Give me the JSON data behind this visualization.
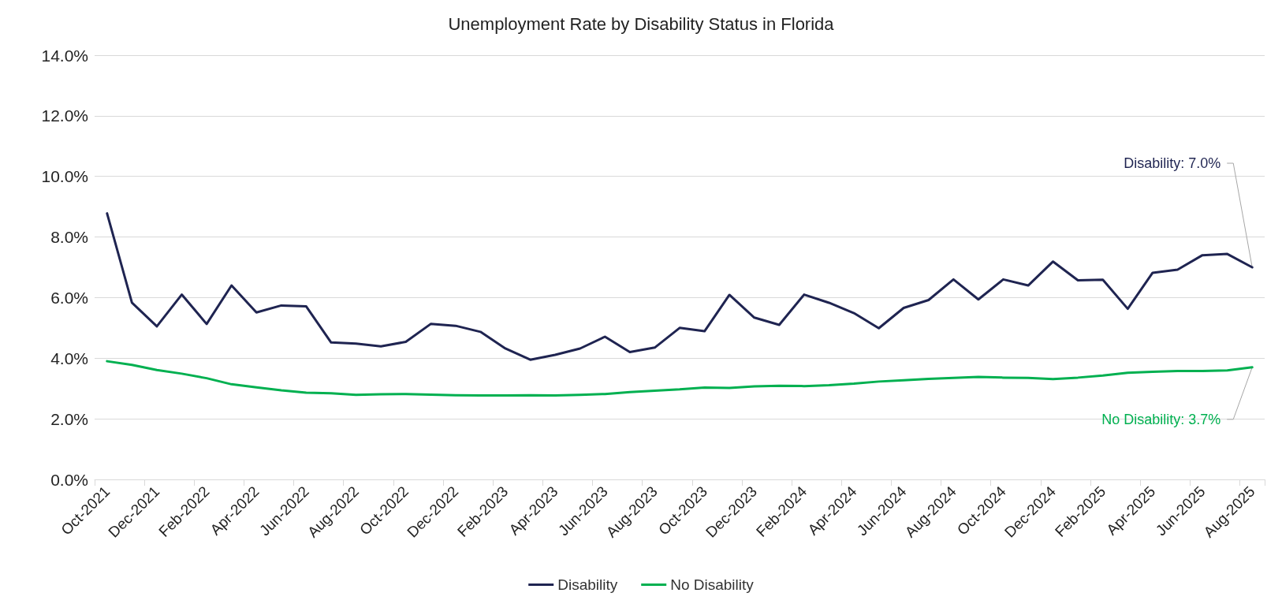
{
  "chart_data": {
    "type": "line",
    "title": "Unemployment Rate by Disability Status in Florida",
    "categories": [
      "Oct-2021",
      null,
      "Dec-2021",
      null,
      "Feb-2022",
      null,
      "Apr-2022",
      null,
      "Jun-2022",
      null,
      "Aug-2022",
      null,
      "Oct-2022",
      null,
      "Dec-2022",
      null,
      "Feb-2023",
      null,
      "Apr-2023",
      null,
      "Jun-2023",
      null,
      "Aug-2023",
      null,
      "Oct-2023",
      null,
      "Dec-2023",
      null,
      "Feb-2024",
      null,
      "Apr-2024",
      null,
      "Jun-2024",
      null,
      "Aug-2024",
      null,
      "Oct-2024",
      null,
      "Dec-2024",
      null,
      "Feb-2025",
      null,
      "Apr-2025",
      null,
      "Jun-2025",
      null,
      "Aug-2025"
    ],
    "series": [
      {
        "name": "Disability",
        "color": "#1f2451",
        "values": [
          8.78,
          5.83,
          5.05,
          6.1,
          5.13,
          6.4,
          5.51,
          5.74,
          5.71,
          4.52,
          4.48,
          4.39,
          4.54,
          5.13,
          5.07,
          4.87,
          4.32,
          3.95,
          4.11,
          4.32,
          4.71,
          4.2,
          4.35,
          5.0,
          4.89,
          6.09,
          5.34,
          5.1,
          6.1,
          5.83,
          5.49,
          4.99,
          5.66,
          5.92,
          6.6,
          5.94,
          6.6,
          6.4,
          7.19,
          6.57,
          6.59,
          5.63,
          6.82,
          6.92,
          7.4,
          7.44,
          7.0
        ]
      },
      {
        "name": "No Disability",
        "color": "#00b050",
        "values": [
          3.9,
          3.78,
          3.61,
          3.49,
          3.34,
          3.14,
          3.04,
          2.94,
          2.86,
          2.84,
          2.79,
          2.81,
          2.82,
          2.8,
          2.78,
          2.77,
          2.77,
          2.78,
          2.77,
          2.79,
          2.82,
          2.88,
          2.93,
          2.97,
          3.03,
          3.02,
          3.07,
          3.09,
          3.08,
          3.11,
          3.16,
          3.23,
          3.27,
          3.32,
          3.35,
          3.38,
          3.36,
          3.35,
          3.31,
          3.36,
          3.43,
          3.52,
          3.55,
          3.58,
          3.58,
          3.6,
          3.7
        ]
      }
    ],
    "ylim": [
      0,
      14
    ],
    "yticks": [
      {
        "value": 0,
        "label": "0.0%"
      },
      {
        "value": 2,
        "label": "2.0%"
      },
      {
        "value": 4,
        "label": "4.0%"
      },
      {
        "value": 6,
        "label": "6.0%"
      },
      {
        "value": 8,
        "label": "8.0%"
      },
      {
        "value": 10,
        "label": "10.0%"
      },
      {
        "value": 12,
        "label": "12.0%"
      },
      {
        "value": 14,
        "label": "14.0%"
      }
    ],
    "annotations": [
      {
        "text": "Disability: 7.0%",
        "x": "Aug-2025",
        "y": 7.0
      },
      {
        "text": "No Disability: 3.7%",
        "x": "Aug-2025",
        "y": 3.7
      }
    ],
    "grid": "y",
    "legend": "bottom",
    "marker": "none",
    "line_style": "solid"
  }
}
